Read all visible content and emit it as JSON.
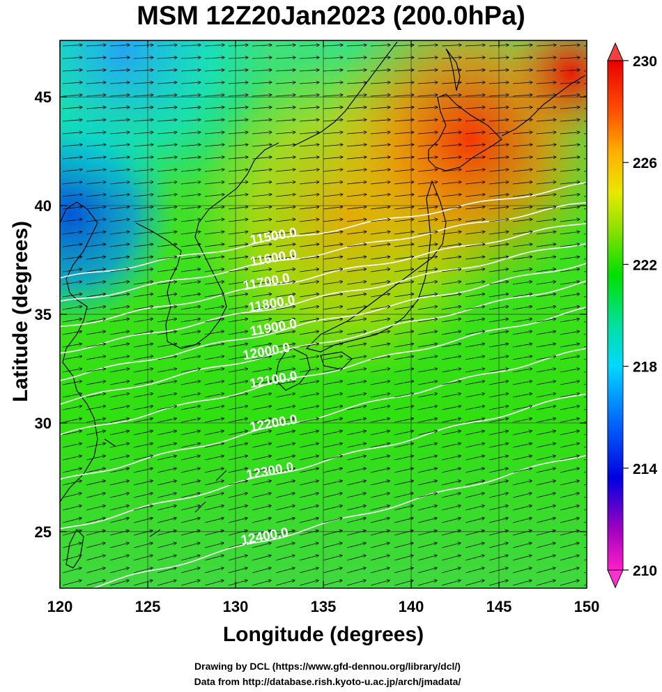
{
  "title": "MSM 12Z20Jan2023 (200.0hPa)",
  "xlabel": "Longitude (degrees)",
  "ylabel": "Latitude  (degrees)",
  "credits": [
    "Drawing by DCL (https://www.gfd-dennou.org/library/dcl/)",
    "Data from http://database.rish.kyoto-u.ac.jp/arch/jmadata/"
  ],
  "map": {
    "lon_range": [
      120,
      150
    ],
    "lat_range": [
      22.4,
      47.6
    ],
    "x_ticks": [
      120,
      125,
      130,
      135,
      140,
      145,
      150
    ],
    "y_ticks": [
      25,
      30,
      35,
      40,
      45
    ],
    "grid": true
  },
  "colorbar": {
    "min": 210,
    "max": 230,
    "ticks": [
      210,
      214,
      218,
      222,
      226,
      230
    ],
    "colors": [
      "#ff20c8",
      "#8000c0",
      "#0000e0",
      "#0070ff",
      "#00d8ff",
      "#00e0a0",
      "#00e000",
      "#80e000",
      "#e8e800",
      "#ffb000",
      "#ff5000",
      "#e80000"
    ]
  },
  "contours": {
    "labels": [
      {
        "text": "11500.0",
        "lon": 132.2,
        "lat": 38.4
      },
      {
        "text": "11600.0",
        "lon": 132.2,
        "lat": 37.4
      },
      {
        "text": "11700.0",
        "lon": 131.8,
        "lat": 36.3
      },
      {
        "text": "11800.0",
        "lon": 132.1,
        "lat": 35.3
      },
      {
        "text": "11900.0",
        "lon": 132.2,
        "lat": 34.2
      },
      {
        "text": "12000.0",
        "lon": 131.8,
        "lat": 33.1
      },
      {
        "text": "12100.0",
        "lon": 132.2,
        "lat": 31.8
      },
      {
        "text": "12200.0",
        "lon": 132.2,
        "lat": 29.8
      },
      {
        "text": "12300.0",
        "lon": 132.0,
        "lat": 27.6
      },
      {
        "text": "12400.0",
        "lon": 131.7,
        "lat": 24.6
      }
    ]
  }
}
